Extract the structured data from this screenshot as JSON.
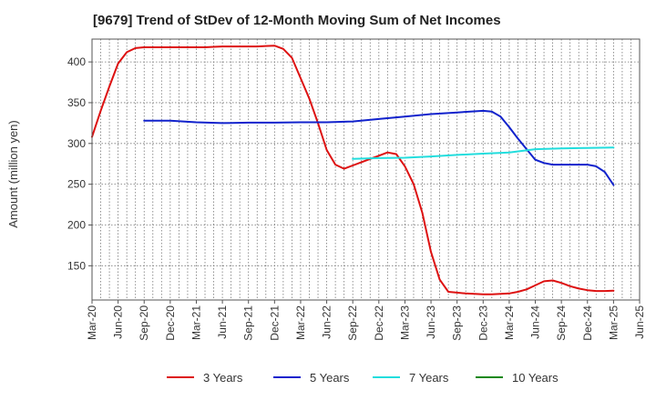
{
  "chart_data": {
    "type": "line",
    "title": "[9679]  Trend of StDev of 12-Month Moving Sum of Net Incomes",
    "ylabel": "Amount (million yen)",
    "xlabel": "",
    "ylim": [
      108,
      428
    ],
    "yticks": [
      150,
      200,
      250,
      300,
      350,
      400
    ],
    "xtick_labels": [
      "Mar-20",
      "Jun-20",
      "Sep-20",
      "Dec-20",
      "Mar-21",
      "Jun-21",
      "Sep-21",
      "Dec-21",
      "Mar-22",
      "Jun-22",
      "Sep-22",
      "Dec-22",
      "Mar-23",
      "Jun-23",
      "Sep-23",
      "Dec-23",
      "Mar-24",
      "Jun-24",
      "Sep-24",
      "Dec-24",
      "Mar-25",
      "Jun-25"
    ],
    "grid": true,
    "legend_position": "bottom",
    "series": [
      {
        "name": "3 Years",
        "color": "#dd1111",
        "x": [
          "2020-03",
          "2020-04",
          "2020-05",
          "2020-06",
          "2020-07",
          "2020-08",
          "2020-09",
          "2020-10",
          "2020-11",
          "2020-12",
          "2021-01",
          "2021-02",
          "2021-03",
          "2021-04",
          "2021-05",
          "2021-06",
          "2021-07",
          "2021-08",
          "2021-09",
          "2021-10",
          "2021-11",
          "2021-12",
          "2022-01",
          "2022-02",
          "2022-03",
          "2022-04",
          "2022-05",
          "2022-06",
          "2022-07",
          "2022-08",
          "2022-09",
          "2022-10",
          "2022-11",
          "2022-12",
          "2023-01",
          "2023-02",
          "2023-03",
          "2023-04",
          "2023-05",
          "2023-06",
          "2023-07",
          "2023-08",
          "2023-09",
          "2023-10",
          "2023-11",
          "2023-12",
          "2024-01",
          "2024-02",
          "2024-03",
          "2024-04",
          "2024-05",
          "2024-06",
          "2024-07",
          "2024-08",
          "2024-09",
          "2024-10",
          "2024-11",
          "2024-12",
          "2025-01",
          "2025-02",
          "2025-03"
        ],
        "values": [
          308,
          340,
          370,
          398,
          412,
          417,
          418,
          418,
          418,
          418,
          418,
          418,
          418,
          418,
          418.5,
          419,
          419,
          419,
          419,
          419,
          419.5,
          420,
          416,
          405,
          380,
          355,
          325,
          292,
          274,
          269,
          273,
          277,
          281,
          285,
          289,
          287,
          272,
          250,
          215,
          167,
          133,
          118,
          117,
          116,
          115.5,
          115,
          115,
          115.5,
          116,
          118,
          121,
          126,
          131,
          132,
          129,
          125,
          122,
          120,
          119,
          119,
          119.5
        ]
      },
      {
        "name": "5 Years",
        "color": "#1122cc",
        "x": [
          "2020-09",
          "2020-12",
          "2021-03",
          "2021-06",
          "2021-09",
          "2021-12",
          "2022-03",
          "2022-06",
          "2022-09",
          "2022-12",
          "2023-03",
          "2023-06",
          "2023-09",
          "2023-12",
          "2024-01",
          "2024-02",
          "2024-03",
          "2024-04",
          "2024-05",
          "2024-06",
          "2024-07",
          "2024-08",
          "2024-09",
          "2024-10",
          "2024-11",
          "2024-12",
          "2025-01",
          "2025-02",
          "2025-03"
        ],
        "values": [
          328,
          328,
          326,
          325,
          325.5,
          325.5,
          326,
          326,
          327,
          330,
          333,
          336,
          338,
          340,
          339,
          333,
          320,
          306,
          293,
          280,
          276,
          274,
          274,
          274,
          274,
          274,
          272,
          265,
          249
        ]
      },
      {
        "name": "7 Years",
        "color": "#22dddd",
        "x": [
          "2022-09",
          "2022-12",
          "2023-03",
          "2023-06",
          "2023-09",
          "2023-12",
          "2024-03",
          "2024-06",
          "2024-09",
          "2024-12",
          "2025-03"
        ],
        "values": [
          281,
          282,
          282.5,
          284,
          286,
          287.5,
          289,
          293,
          294,
          294.5,
          295
        ]
      },
      {
        "name": "10 Years",
        "color": "#118811",
        "x": [],
        "values": []
      }
    ]
  }
}
